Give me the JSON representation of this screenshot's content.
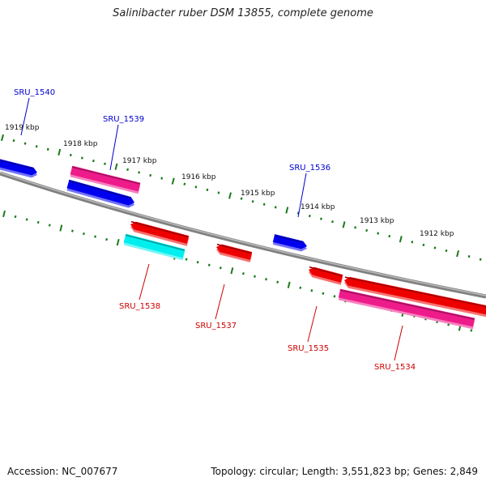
{
  "title": "Salinibacter ruber DSM 13855, complete genome",
  "footer": {
    "accession": "Accession: NC_007677",
    "topology": "Topology: circular; Length: 3,551,823 bp; Genes: 2,849"
  },
  "colors": {
    "backbone": "#808080",
    "ticks": "#1a7a1a",
    "blue": "#0000ee",
    "pink": "#ee1b8a",
    "red": "#ee0000",
    "cyan": "#00eeee",
    "label_blue": "#0000cc",
    "label_red": "#cc0000"
  },
  "kbp_labels": [
    "1919 kbp",
    "1918 kbp",
    "1917 kbp",
    "1916 kbp",
    "1915 kbp",
    "1914 kbp",
    "1913 kbp",
    "1912 kbp"
  ],
  "genes": [
    {
      "name": "",
      "color": "blue",
      "direction": "right"
    },
    {
      "name": "SRU_1540",
      "color": "blue"
    },
    {
      "name": "SRU_1539",
      "color": "pink",
      "direction": "none"
    },
    {
      "name": "",
      "color": "blue",
      "direction": "right"
    },
    {
      "name": "SRU_1536",
      "color": "blue",
      "direction": "right"
    },
    {
      "name": "SRU_1538",
      "color": "cyan",
      "direction": "none"
    },
    {
      "name": "",
      "color": "red",
      "direction": "left"
    },
    {
      "name": "SRU_1537",
      "color": "red",
      "direction": "left"
    },
    {
      "name": "SRU_1535",
      "color": "red",
      "direction": "left"
    },
    {
      "name": "",
      "color": "red",
      "direction": "left"
    },
    {
      "name": "SRU_1534",
      "color": "pink",
      "direction": "none"
    }
  ]
}
